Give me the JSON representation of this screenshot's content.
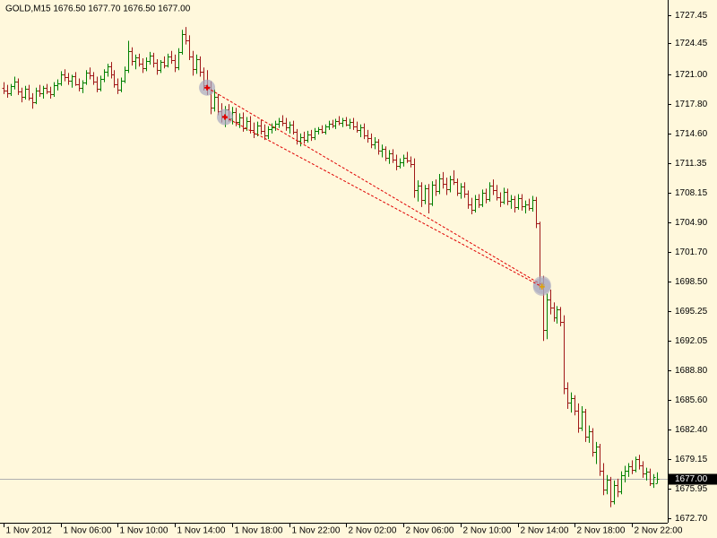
{
  "chart_data": {
    "type": "ohlc",
    "title": "GOLD,M15  1676.50 1677.70 1676.50 1677.00",
    "up_color": "#008000",
    "down_color": "#a01818",
    "background": "#fff8dc",
    "xlim": [
      -1,
      186
    ],
    "ylim": [
      1672.2,
      1729.05
    ],
    "xticks": [
      {
        "value": 0,
        "label": "1 Nov 2012"
      },
      {
        "value": 16,
        "label": "1 Nov 06:00"
      },
      {
        "value": 32,
        "label": "1 Nov 10:00"
      },
      {
        "value": 48,
        "label": "1 Nov 14:00"
      },
      {
        "value": 64,
        "label": "1 Nov 18:00"
      },
      {
        "value": 80,
        "label": "1 Nov 22:00"
      },
      {
        "value": 96,
        "label": "2 Nov 02:00"
      },
      {
        "value": 112,
        "label": "2 Nov 06:00"
      },
      {
        "value": 128,
        "label": "2 Nov 10:00"
      },
      {
        "value": 144,
        "label": "2 Nov 14:00"
      },
      {
        "value": 160,
        "label": "2 Nov 18:00"
      },
      {
        "value": 176,
        "label": "2 Nov 22:00"
      }
    ],
    "yticks": [
      1727.45,
      1724.45,
      {
        "value": 1721,
        "label": "1721.00"
      },
      {
        "value": 1717.8,
        "label": "1717.80"
      },
      {
        "value": 1714.6,
        "label": "1714.60"
      },
      1711.35,
      1708.15,
      {
        "value": 1704.9,
        "label": "1704.90"
      },
      {
        "value": 1701.7,
        "label": "1701.70"
      },
      {
        "value": 1698.5,
        "label": "1698.50"
      },
      1695.25,
      1692.05,
      {
        "value": 1688.8,
        "label": "1688.80"
      },
      {
        "value": 1685.6,
        "label": "1685.60"
      },
      {
        "value": 1682.4,
        "label": "1682.40"
      },
      1679.15,
      1675.95,
      {
        "value": 1672.7,
        "label": "1672.70"
      }
    ],
    "current_price": {
      "value": 1677,
      "label": "1677.00"
    },
    "trades": [
      {
        "open_x": 57,
        "open_price": 1719.6,
        "close_x": 150.8,
        "close_price": 1698.1
      },
      {
        "open_x": 62,
        "open_price": 1716.4,
        "close_x": 150.8,
        "close_price": 1697.9
      }
    ],
    "ohlc": [
      [
        1719.6,
        1720.2,
        1718.9,
        1719.3
      ],
      [
        1719.3,
        1719.9,
        1718.5,
        1719.0
      ],
      [
        1719.0,
        1720.0,
        1718.7,
        1719.8
      ],
      [
        1719.8,
        1720.8,
        1719.4,
        1720.3
      ],
      [
        1720.3,
        1720.6,
        1718.8,
        1719.2
      ],
      [
        1719.2,
        1719.6,
        1718.0,
        1718.6
      ],
      [
        1718.6,
        1719.8,
        1718.3,
        1719.5
      ],
      [
        1719.5,
        1719.9,
        1718.2,
        1718.5
      ],
      [
        1718.5,
        1719.0,
        1717.3,
        1718.0
      ],
      [
        1718.0,
        1719.6,
        1717.8,
        1719.3
      ],
      [
        1719.3,
        1719.9,
        1718.6,
        1719.0
      ],
      [
        1719.0,
        1719.8,
        1718.4,
        1719.6
      ],
      [
        1719.6,
        1720.0,
        1718.9,
        1719.2
      ],
      [
        1719.2,
        1719.7,
        1718.4,
        1718.9
      ],
      [
        1718.9,
        1720.2,
        1718.6,
        1719.9
      ],
      [
        1719.9,
        1720.5,
        1719.3,
        1720.1
      ],
      [
        1720.1,
        1721.4,
        1719.8,
        1721.0
      ],
      [
        1721.0,
        1721.6,
        1720.3,
        1720.7
      ],
      [
        1720.7,
        1721.2,
        1719.9,
        1720.4
      ],
      [
        1720.4,
        1721.0,
        1719.6,
        1720.8
      ],
      [
        1720.8,
        1721.3,
        1719.8,
        1720.0
      ],
      [
        1720.0,
        1720.6,
        1719.2,
        1719.6
      ],
      [
        1719.6,
        1720.4,
        1719.0,
        1720.2
      ],
      [
        1720.2,
        1721.5,
        1719.9,
        1721.2
      ],
      [
        1721.2,
        1721.8,
        1720.5,
        1720.9
      ],
      [
        1720.9,
        1721.3,
        1719.9,
        1720.3
      ],
      [
        1720.3,
        1720.8,
        1719.1,
        1719.5
      ],
      [
        1719.5,
        1720.9,
        1719.2,
        1720.6
      ],
      [
        1720.6,
        1721.6,
        1720.2,
        1721.3
      ],
      [
        1721.3,
        1722.2,
        1720.8,
        1721.9
      ],
      [
        1721.9,
        1722.4,
        1720.6,
        1721.0
      ],
      [
        1721.0,
        1721.5,
        1719.6,
        1720.0
      ],
      [
        1720.0,
        1720.6,
        1718.9,
        1719.4
      ],
      [
        1719.4,
        1720.7,
        1719.1,
        1720.4
      ],
      [
        1720.4,
        1721.9,
        1720.1,
        1721.5
      ],
      [
        1721.5,
        1724.7,
        1721.2,
        1723.6
      ],
      [
        1723.6,
        1724.0,
        1722.0,
        1722.5
      ],
      [
        1722.5,
        1723.2,
        1721.6,
        1722.9
      ],
      [
        1722.9,
        1723.3,
        1721.9,
        1722.2
      ],
      [
        1722.2,
        1722.8,
        1721.2,
        1721.7
      ],
      [
        1721.7,
        1722.9,
        1721.4,
        1722.5
      ],
      [
        1722.5,
        1723.5,
        1722.1,
        1723.1
      ],
      [
        1723.1,
        1723.4,
        1721.8,
        1722.3
      ],
      [
        1722.3,
        1722.7,
        1721.0,
        1721.5
      ],
      [
        1721.5,
        1722.6,
        1721.2,
        1722.4
      ],
      [
        1722.4,
        1723.0,
        1721.7,
        1722.0
      ],
      [
        1722.0,
        1723.3,
        1721.8,
        1723.0
      ],
      [
        1723.0,
        1723.6,
        1722.2,
        1722.6
      ],
      [
        1722.6,
        1723.2,
        1721.3,
        1721.8
      ],
      [
        1721.8,
        1723.9,
        1721.5,
        1723.5
      ],
      [
        1723.5,
        1725.9,
        1723.2,
        1725.4
      ],
      [
        1725.4,
        1726.2,
        1724.3,
        1724.8
      ],
      [
        1724.8,
        1725.3,
        1722.6,
        1723.0
      ],
      [
        1723.0,
        1723.6,
        1720.9,
        1721.6
      ],
      [
        1721.6,
        1723.2,
        1721.1,
        1722.7
      ],
      [
        1722.7,
        1723.0,
        1720.8,
        1721.3
      ],
      [
        1721.3,
        1721.8,
        1719.3,
        1719.9
      ],
      [
        1719.9,
        1721.5,
        1718.8,
        1719.7
      ],
      [
        1719.7,
        1720.3,
        1716.7,
        1717.4
      ],
      [
        1717.4,
        1719.4,
        1717.0,
        1718.6
      ],
      [
        1718.6,
        1718.9,
        1716.6,
        1717.0
      ],
      [
        1717.0,
        1717.9,
        1715.8,
        1716.5
      ],
      [
        1716.5,
        1717.6,
        1715.3,
        1717.2
      ],
      [
        1717.2,
        1717.8,
        1715.9,
        1716.3
      ],
      [
        1716.3,
        1717.5,
        1715.6,
        1716.9
      ],
      [
        1716.9,
        1717.4,
        1715.4,
        1715.9
      ],
      [
        1715.9,
        1716.8,
        1715.2,
        1716.4
      ],
      [
        1716.4,
        1716.9,
        1714.8,
        1715.2
      ],
      [
        1715.2,
        1716.4,
        1714.9,
        1716.0
      ],
      [
        1716.0,
        1716.5,
        1714.6,
        1715.0
      ],
      [
        1715.0,
        1715.8,
        1714.1,
        1714.6
      ],
      [
        1714.6,
        1715.9,
        1714.3,
        1715.5
      ],
      [
        1715.5,
        1716.1,
        1714.5,
        1714.9
      ],
      [
        1714.9,
        1715.6,
        1713.9,
        1714.4
      ],
      [
        1714.4,
        1715.4,
        1714.0,
        1715.1
      ],
      [
        1715.1,
        1715.7,
        1714.6,
        1715.3
      ],
      [
        1715.3,
        1716.0,
        1714.9,
        1715.7
      ],
      [
        1715.7,
        1716.3,
        1715.2,
        1716.0
      ],
      [
        1716.0,
        1716.6,
        1715.4,
        1715.8
      ],
      [
        1715.8,
        1716.3,
        1714.9,
        1715.3
      ],
      [
        1715.3,
        1715.9,
        1714.6,
        1715.6
      ],
      [
        1715.6,
        1716.0,
        1714.5,
        1714.8
      ],
      [
        1714.8,
        1715.1,
        1713.4,
        1713.8
      ],
      [
        1713.8,
        1714.6,
        1713.2,
        1714.2
      ],
      [
        1714.2,
        1714.8,
        1713.5,
        1713.9
      ],
      [
        1713.9,
        1714.9,
        1713.6,
        1714.5
      ],
      [
        1714.5,
        1715.0,
        1713.8,
        1714.2
      ],
      [
        1714.2,
        1715.2,
        1713.9,
        1714.9
      ],
      [
        1714.9,
        1715.3,
        1714.5,
        1715.1
      ],
      [
        1715.1,
        1715.5,
        1714.6,
        1714.8
      ],
      [
        1714.8,
        1715.6,
        1714.5,
        1715.4
      ],
      [
        1715.4,
        1716.0,
        1715.0,
        1715.7
      ],
      [
        1715.7,
        1716.1,
        1715.2,
        1715.5
      ],
      [
        1715.5,
        1716.2,
        1715.1,
        1716.0
      ],
      [
        1716.0,
        1716.5,
        1715.5,
        1715.8
      ],
      [
        1715.8,
        1716.3,
        1715.3,
        1716.1
      ],
      [
        1716.1,
        1716.4,
        1715.4,
        1715.6
      ],
      [
        1715.6,
        1716.2,
        1715.1,
        1715.9
      ],
      [
        1715.9,
        1716.3,
        1715.0,
        1715.4
      ],
      [
        1715.4,
        1715.9,
        1714.7,
        1715.0
      ],
      [
        1715.0,
        1715.6,
        1714.2,
        1715.3
      ],
      [
        1715.3,
        1715.7,
        1714.0,
        1714.4
      ],
      [
        1714.4,
        1715.0,
        1713.6,
        1714.1
      ],
      [
        1714.1,
        1714.6,
        1713.0,
        1713.4
      ],
      [
        1713.4,
        1714.2,
        1712.9,
        1713.7
      ],
      [
        1713.7,
        1714.0,
        1712.3,
        1712.7
      ],
      [
        1712.7,
        1713.4,
        1712.0,
        1712.9
      ],
      [
        1712.9,
        1713.2,
        1711.6,
        1712.0
      ],
      [
        1712.0,
        1712.8,
        1711.3,
        1712.4
      ],
      [
        1712.4,
        1712.9,
        1711.4,
        1711.8
      ],
      [
        1711.8,
        1712.3,
        1710.6,
        1711.1
      ],
      [
        1711.1,
        1711.9,
        1710.8,
        1711.5
      ],
      [
        1711.5,
        1712.3,
        1711.0,
        1712.0
      ],
      [
        1712.0,
        1712.6,
        1711.4,
        1711.7
      ],
      [
        1711.7,
        1712.1,
        1710.9,
        1711.3
      ],
      [
        1711.3,
        1711.9,
        1707.6,
        1708.4
      ],
      [
        1708.4,
        1709.5,
        1707.2,
        1708.9
      ],
      [
        1708.9,
        1709.3,
        1706.6,
        1707.4
      ],
      [
        1707.4,
        1709.0,
        1706.9,
        1708.6
      ],
      [
        1708.6,
        1709.1,
        1705.9,
        1707.0
      ],
      [
        1707.0,
        1709.4,
        1706.7,
        1709.0
      ],
      [
        1709.0,
        1709.6,
        1707.8,
        1708.3
      ],
      [
        1708.3,
        1710.2,
        1708.0,
        1709.7
      ],
      [
        1709.7,
        1710.4,
        1708.6,
        1709.1
      ],
      [
        1709.1,
        1709.8,
        1707.9,
        1708.5
      ],
      [
        1708.5,
        1710.0,
        1708.2,
        1709.6
      ],
      [
        1709.6,
        1710.6,
        1709.0,
        1709.3
      ],
      [
        1709.3,
        1709.7,
        1707.8,
        1708.1
      ],
      [
        1708.1,
        1709.2,
        1707.5,
        1708.8
      ],
      [
        1708.8,
        1709.3,
        1707.6,
        1708.0
      ],
      [
        1708.0,
        1708.4,
        1706.4,
        1706.9
      ],
      [
        1706.9,
        1707.6,
        1705.8,
        1706.3
      ],
      [
        1706.3,
        1707.9,
        1706.0,
        1707.5
      ],
      [
        1707.5,
        1708.0,
        1706.5,
        1706.9
      ],
      [
        1706.9,
        1708.5,
        1706.6,
        1708.1
      ],
      [
        1708.1,
        1708.6,
        1707.0,
        1707.5
      ],
      [
        1707.5,
        1709.3,
        1707.2,
        1708.9
      ],
      [
        1708.9,
        1709.6,
        1707.9,
        1708.4
      ],
      [
        1708.4,
        1709.0,
        1707.3,
        1707.7
      ],
      [
        1707.7,
        1708.2,
        1706.6,
        1707.2
      ],
      [
        1707.2,
        1708.7,
        1706.9,
        1708.2
      ],
      [
        1708.2,
        1708.6,
        1706.8,
        1707.3
      ],
      [
        1707.3,
        1707.9,
        1706.4,
        1707.5
      ],
      [
        1707.5,
        1707.8,
        1706.0,
        1706.6
      ],
      [
        1706.6,
        1708.0,
        1706.3,
        1707.6
      ],
      [
        1707.6,
        1708.0,
        1706.2,
        1706.7
      ],
      [
        1706.7,
        1707.3,
        1705.9,
        1706.9
      ],
      [
        1706.9,
        1707.5,
        1706.2,
        1706.5
      ],
      [
        1706.5,
        1707.8,
        1706.1,
        1707.4
      ],
      [
        1707.4,
        1707.7,
        1704.3,
        1704.8
      ],
      [
        1704.8,
        1705.0,
        1697.6,
        1698.3
      ],
      [
        1698.3,
        1699.1,
        1692.0,
        1693.2
      ],
      [
        1693.2,
        1697.2,
        1692.2,
        1696.5
      ],
      [
        1696.5,
        1697.6,
        1694.9,
        1695.6
      ],
      [
        1695.6,
        1696.2,
        1694.1,
        1694.6
      ],
      [
        1694.6,
        1695.8,
        1693.9,
        1695.4
      ],
      [
        1695.4,
        1695.7,
        1693.6,
        1694.1
      ],
      [
        1694.1,
        1694.8,
        1686.2,
        1686.9
      ],
      [
        1686.9,
        1687.5,
        1684.6,
        1685.3
      ],
      [
        1685.3,
        1686.4,
        1684.2,
        1685.8
      ],
      [
        1685.8,
        1686.1,
        1683.9,
        1684.4
      ],
      [
        1684.4,
        1685.2,
        1682.0,
        1682.6
      ],
      [
        1682.6,
        1684.9,
        1682.2,
        1684.3
      ],
      [
        1684.3,
        1684.6,
        1681.0,
        1681.6
      ],
      [
        1681.6,
        1682.8,
        1680.9,
        1682.2
      ],
      [
        1682.2,
        1682.5,
        1679.4,
        1679.9
      ],
      [
        1679.9,
        1681.0,
        1678.6,
        1680.5
      ],
      [
        1680.5,
        1680.8,
        1677.3,
        1677.9
      ],
      [
        1677.9,
        1678.7,
        1675.2,
        1675.8
      ],
      [
        1675.8,
        1677.4,
        1675.3,
        1676.9
      ],
      [
        1676.9,
        1677.2,
        1673.9,
        1674.5
      ],
      [
        1674.5,
        1676.8,
        1674.2,
        1676.3
      ],
      [
        1676.3,
        1677.0,
        1675.0,
        1675.6
      ],
      [
        1675.6,
        1677.8,
        1675.3,
        1677.4
      ],
      [
        1677.4,
        1678.4,
        1676.6,
        1677.9
      ],
      [
        1677.9,
        1678.7,
        1677.2,
        1678.4
      ],
      [
        1678.4,
        1679.0,
        1677.5,
        1678.0
      ],
      [
        1678.0,
        1679.4,
        1677.7,
        1679.1
      ],
      [
        1679.1,
        1679.6,
        1678.0,
        1678.5
      ],
      [
        1678.5,
        1678.9,
        1677.1,
        1677.6
      ],
      [
        1677.6,
        1678.2,
        1676.8,
        1677.8
      ],
      [
        1677.8,
        1678.1,
        1676.2,
        1676.5
      ],
      [
        1676.5,
        1677.5,
        1676.0,
        1677.2
      ],
      [
        1676.5,
        1677.7,
        1676.5,
        1677.0
      ]
    ]
  }
}
